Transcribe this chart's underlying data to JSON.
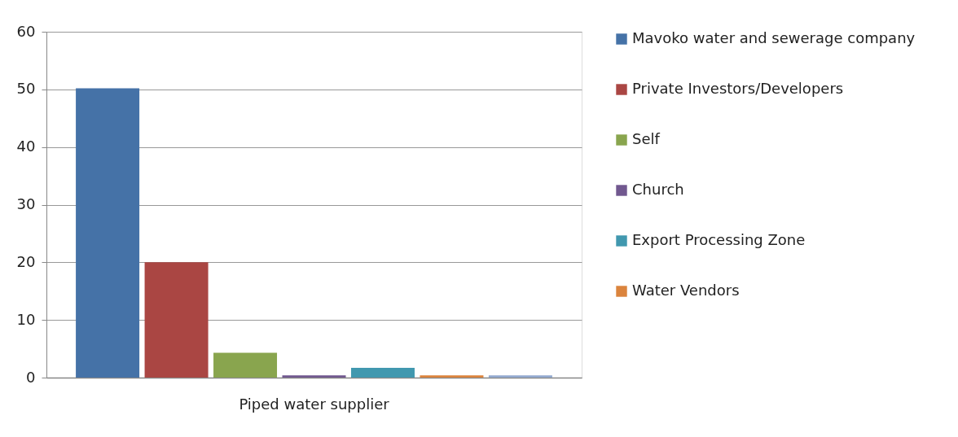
{
  "chart_data": {
    "type": "bar",
    "categories": [
      "Piped water supplier"
    ],
    "series": [
      {
        "name": "Mavoko water and sewerage company",
        "color": "#4572a7",
        "values": [
          50.2
        ]
      },
      {
        "name": "Private Investors/Developers",
        "color": "#aa4643",
        "values": [
          20
        ]
      },
      {
        "name": "Self",
        "color": "#89a54e",
        "values": [
          4.3
        ]
      },
      {
        "name": "Church",
        "color": "#71588f",
        "values": [
          0.4
        ]
      },
      {
        "name": "Export Processing Zone",
        "color": "#4198af",
        "values": [
          1.7
        ]
      },
      {
        "name": "Water Vendors",
        "color": "#db843d",
        "values": [
          0.4
        ]
      },
      {
        "color": "#93a9cf",
        "values": [
          0.4
        ]
      }
    ],
    "ylim": [
      0,
      60
    ],
    "yticks": [
      0,
      10,
      20,
      30,
      40,
      50,
      60
    ],
    "grid": "y",
    "legend": "right"
  }
}
